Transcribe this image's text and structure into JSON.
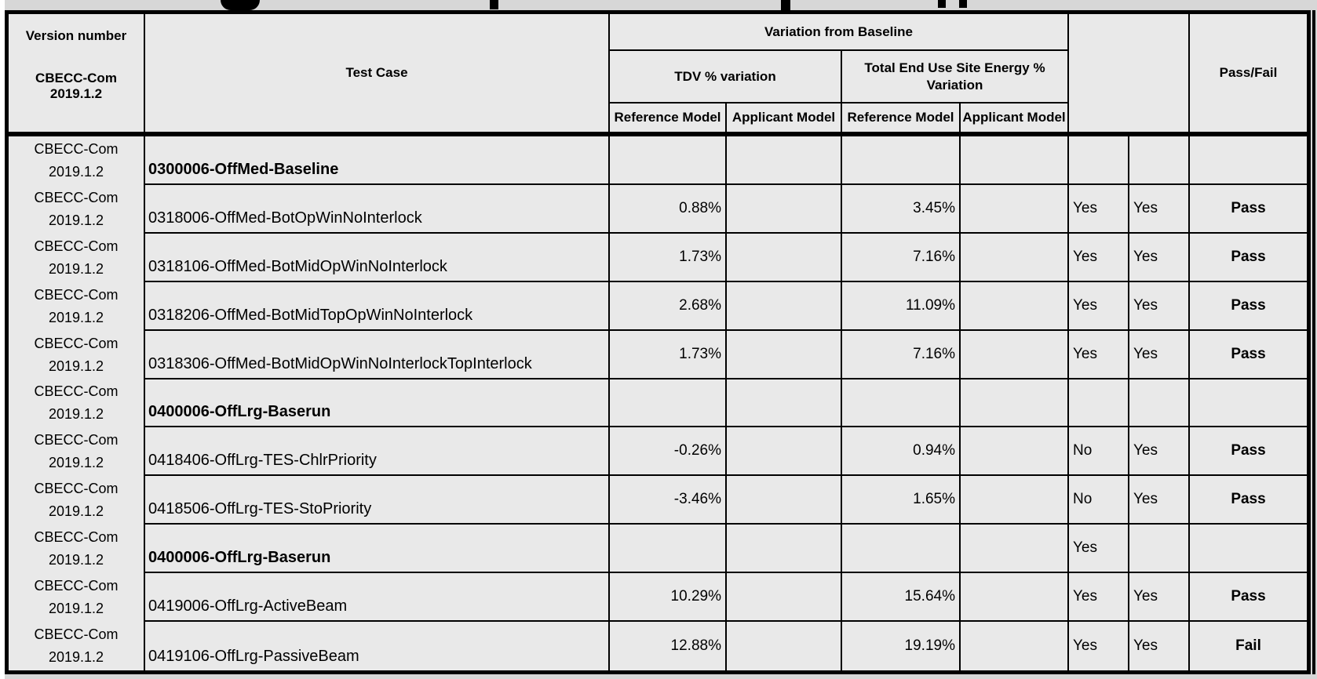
{
  "header": {
    "version_label": "Version number",
    "version_value": "CBECC-Com 2019.1.2",
    "test_case_label": "Test Case",
    "variation_group_label": "Variation from Baseline",
    "tdv_group_label": "TDV % variation",
    "site_energy_group_label": "Total End Use Site Energy % Variation",
    "model_columns": [
      "Reference Model",
      "Applicant Model",
      "Reference Model",
      "Applicant Model"
    ],
    "pass_fail_label": "Pass/Fail"
  },
  "version_cell": {
    "line1": "CBECC-Com",
    "line2": "2019.1.2"
  },
  "rows": [
    {
      "test_case": "0300006-OffMed-Baseline",
      "bold": true,
      "tdv_reference": "",
      "tdv_applicant": "",
      "site_reference": "",
      "site_applicant": "",
      "flag1": "",
      "flag2": "",
      "pass_fail": ""
    },
    {
      "test_case": "0318006-OffMed-BotOpWinNoInterlock",
      "bold": false,
      "tdv_reference": "0.88%",
      "tdv_applicant": "",
      "site_reference": "3.45%",
      "site_applicant": "",
      "flag1": "Yes",
      "flag2": "Yes",
      "pass_fail": "Pass"
    },
    {
      "test_case": "0318106-OffMed-BotMidOpWinNoInterlock",
      "bold": false,
      "tdv_reference": "1.73%",
      "tdv_applicant": "",
      "site_reference": "7.16%",
      "site_applicant": "",
      "flag1": "Yes",
      "flag2": "Yes",
      "pass_fail": "Pass"
    },
    {
      "test_case": "0318206-OffMed-BotMidTopOpWinNoInterlock",
      "bold": false,
      "tdv_reference": "2.68%",
      "tdv_applicant": "",
      "site_reference": "11.09%",
      "site_applicant": "",
      "flag1": "Yes",
      "flag2": "Yes",
      "pass_fail": "Pass"
    },
    {
      "test_case": "0318306-OffMed-BotMidOpWinNoInterlockTopInterlock",
      "bold": false,
      "tdv_reference": "1.73%",
      "tdv_applicant": "",
      "site_reference": "7.16%",
      "site_applicant": "",
      "flag1": "Yes",
      "flag2": "Yes",
      "pass_fail": "Pass"
    },
    {
      "test_case": "0400006-OffLrg-Baserun",
      "bold": true,
      "tdv_reference": "",
      "tdv_applicant": "",
      "site_reference": "",
      "site_applicant": "",
      "flag1": "",
      "flag2": "",
      "pass_fail": ""
    },
    {
      "test_case": "0418406-OffLrg-TES-ChlrPriority",
      "bold": false,
      "tdv_reference": "-0.26%",
      "tdv_applicant": "",
      "site_reference": "0.94%",
      "site_applicant": "",
      "flag1": "No",
      "flag2": "Yes",
      "pass_fail": "Pass"
    },
    {
      "test_case": "0418506-OffLrg-TES-StoPriority",
      "bold": false,
      "tdv_reference": "-3.46%",
      "tdv_applicant": "",
      "site_reference": "1.65%",
      "site_applicant": "",
      "flag1": "No",
      "flag2": "Yes",
      "pass_fail": "Pass"
    },
    {
      "test_case": "0400006-OffLrg-Baserun",
      "bold": true,
      "tdv_reference": "",
      "tdv_applicant": "",
      "site_reference": "",
      "site_applicant": "",
      "flag1": "Yes",
      "flag2": "",
      "pass_fail": ""
    },
    {
      "test_case": "0419006-OffLrg-ActiveBeam",
      "bold": false,
      "tdv_reference": "10.29%",
      "tdv_applicant": "",
      "site_reference": "15.64%",
      "site_applicant": "",
      "flag1": "Yes",
      "flag2": "Yes",
      "pass_fail": "Pass"
    },
    {
      "test_case": "0419106-OffLrg-PassiveBeam",
      "bold": false,
      "tdv_reference": "12.88%",
      "tdv_applicant": "",
      "site_reference": "19.19%",
      "site_applicant": "",
      "flag1": "Yes",
      "flag2": "Yes",
      "pass_fail": "Fail"
    }
  ],
  "colors": {
    "cell_background": "#e9e9e9",
    "gutter_background": "#d7d7d7",
    "grid_border": "#000000",
    "text": "#000000"
  }
}
